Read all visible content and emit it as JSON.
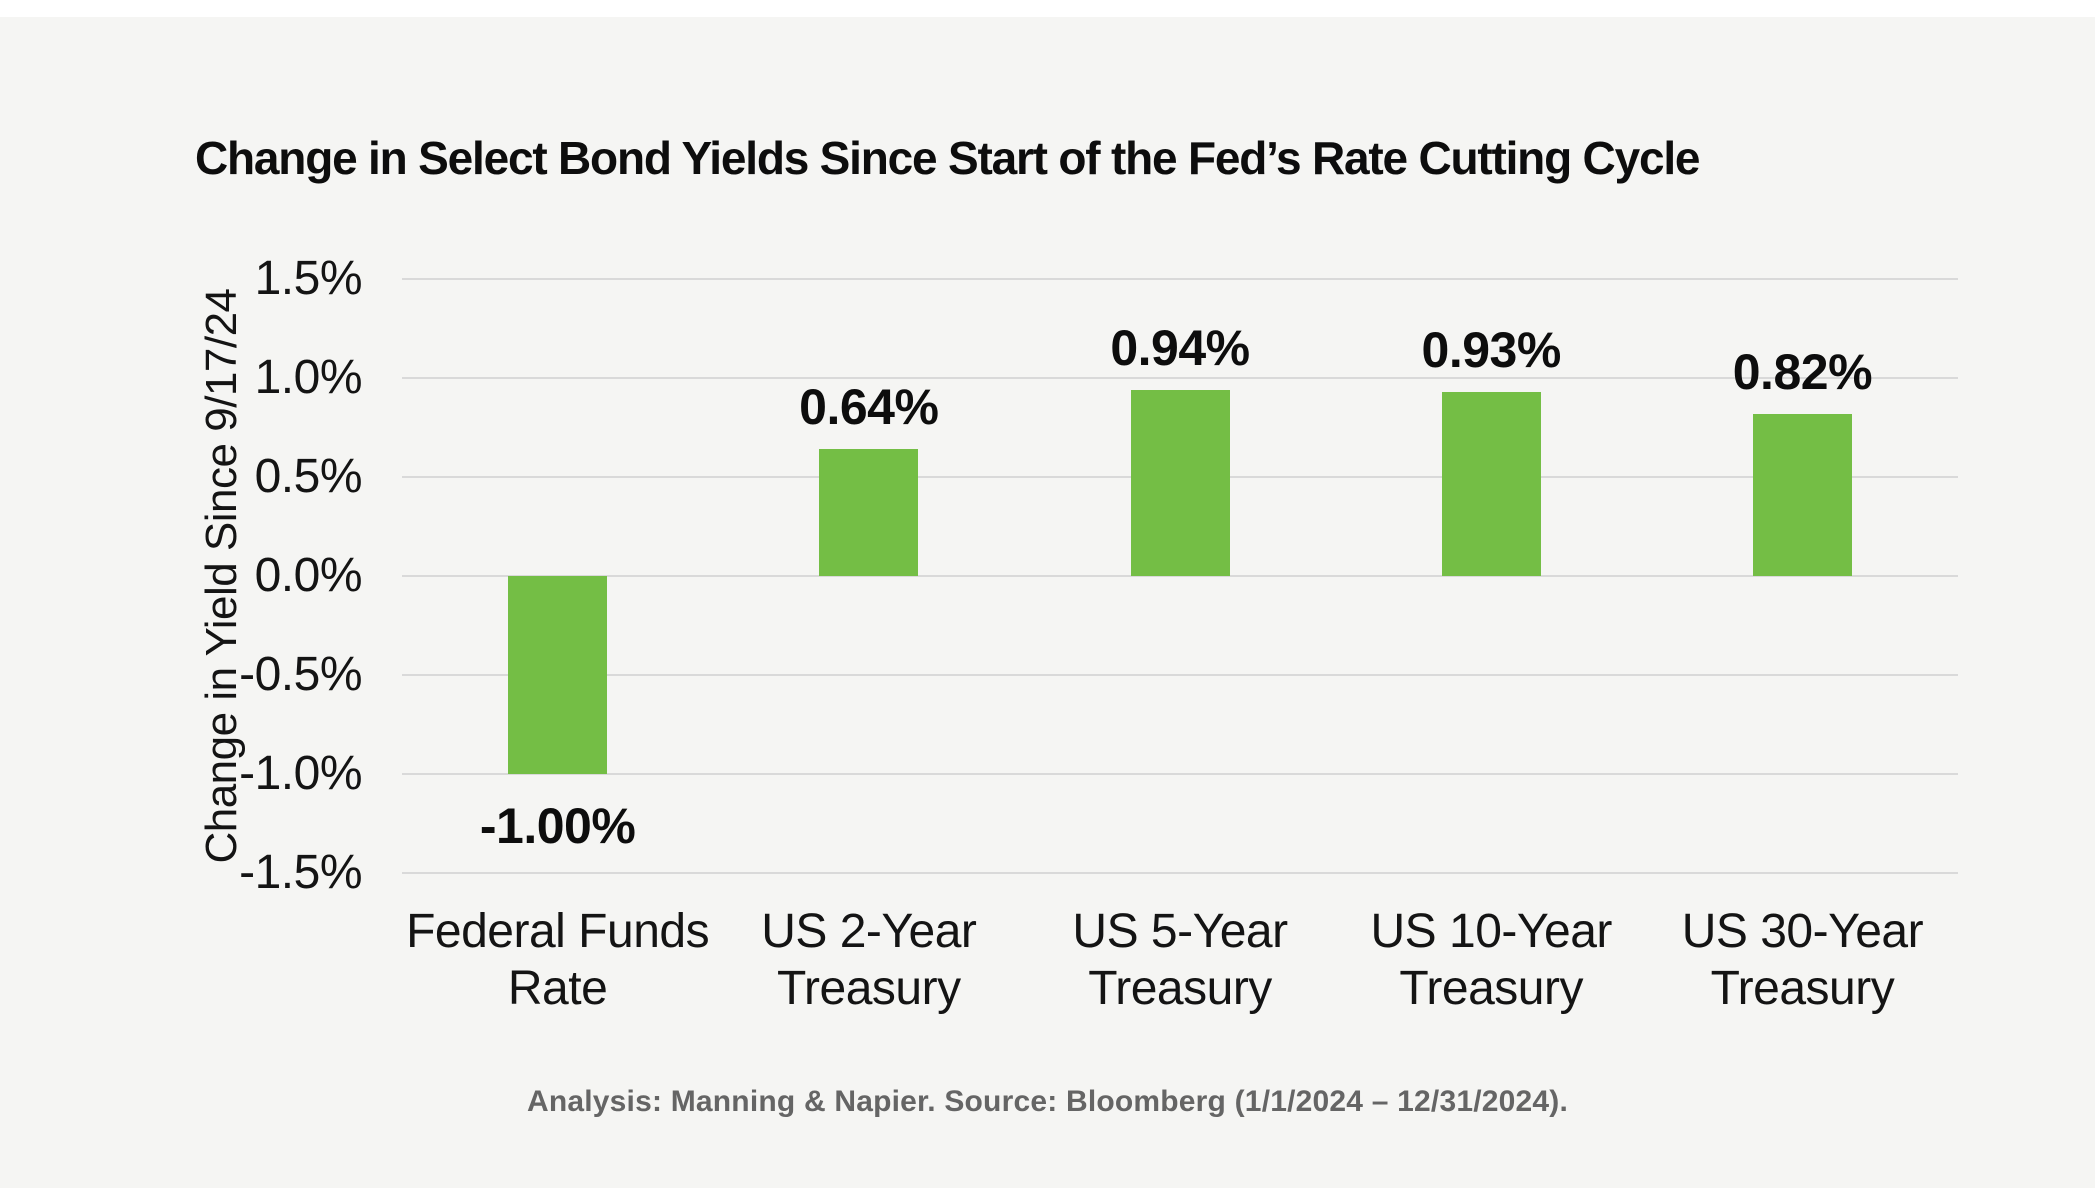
{
  "page": {
    "background": "#f5f5f3",
    "frame_background": "#ffffff"
  },
  "chart_data": {
    "type": "bar",
    "title": "Change in Select Bond Yields Since Start of the Fed’s Rate Cutting Cycle",
    "ylabel": "Change in Yield Since 9/17/24",
    "xlabel": "",
    "categories": [
      "Federal Funds Rate",
      "US 2-Year Treasury",
      "US 5-Year Treasury",
      "US 10-Year Treasury",
      "US 30-Year Treasury"
    ],
    "category_lines": [
      [
        "Federal Funds",
        "Rate"
      ],
      [
        "US 2-Year",
        "Treasury"
      ],
      [
        "US 5-Year",
        "Treasury"
      ],
      [
        "US 10-Year",
        "Treasury"
      ],
      [
        "US 30-Year",
        "Treasury"
      ]
    ],
    "values": [
      -1.0,
      0.64,
      0.94,
      0.93,
      0.82
    ],
    "value_labels": [
      "-1.00%",
      "0.64%",
      "0.94%",
      "0.93%",
      "0.82%"
    ],
    "yticks": [
      1.5,
      1.0,
      0.5,
      0.0,
      -0.5,
      -1.0,
      -1.5
    ],
    "ytick_labels": [
      "1.5%",
      "1.0%",
      "0.5%",
      "0.0%",
      "-0.5%",
      "-1.0%",
      "-1.5%"
    ],
    "ylim": [
      -1.5,
      1.5
    ],
    "bar_color": "#74be45",
    "grid": true,
    "gridline_color": "#d9d9d9",
    "legend": null
  },
  "footer": {
    "source_note": "Analysis: Manning & Napier. Source: Bloomberg (1/1/2024 – 12/31/2024)."
  }
}
